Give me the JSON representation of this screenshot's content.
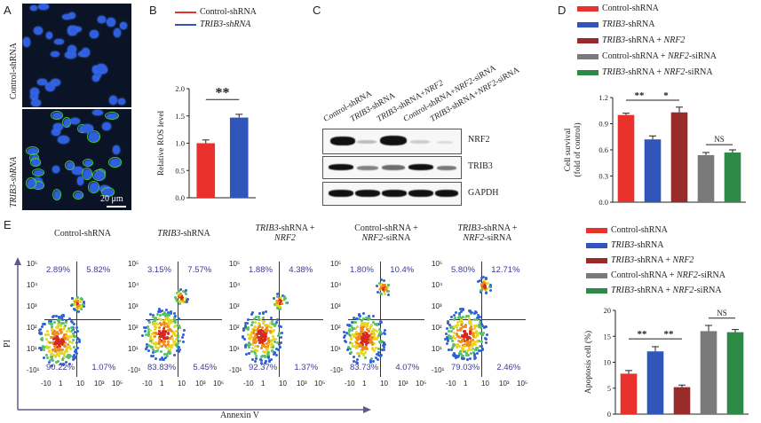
{
  "panels": {
    "a": "A",
    "b": "B",
    "c": "C",
    "d": "D",
    "e": "E"
  },
  "panel_a": {
    "rows": [
      "Control-shRNA",
      "TRIB3-shRNA"
    ],
    "scale_bar": "20 μm"
  },
  "panel_c": {
    "lanes": [
      "Control-shRNA",
      "TRIB3-shRNA",
      "TRIB3-shRNA+NRF2",
      "Control-shRNA+NRF2-siRNA",
      "TRIB3-shRNA+NRF2-siRNA"
    ],
    "blots": [
      "NRF2",
      "TRIB3",
      "GAPDH"
    ]
  },
  "panel_e_axes": {
    "x": "Annexin V",
    "y": "PI"
  },
  "flow_plots": [
    {
      "title": "Control-shRNA",
      "ul": "2.89%",
      "ur": "5.82%",
      "ll": "90.22%",
      "lr": "1.07%"
    },
    {
      "title": "TRIB3-shRNA",
      "ul": "3.15%",
      "ur": "7.57%",
      "ll": "83.83%",
      "lr": "5.45%"
    },
    {
      "title": "TRIB3-shRNA + NRF2",
      "ul": "1.88%",
      "ur": "4.38%",
      "ll": "92.37%",
      "lr": "1.37%"
    },
    {
      "title": "Control-shRNA + NRF2-siRNA",
      "ul": "1.80%",
      "ur": "10.4%",
      "ll": "83.73%",
      "lr": "4.07%"
    },
    {
      "title": "TRIB3-shRNA + NRF2-siRNA",
      "ul": "5.80%",
      "ur": "12.71%",
      "ll": "79.03%",
      "lr": "2.46%"
    }
  ],
  "flow_ticks": {
    "y": [
      "10⁵",
      "10⁴",
      "10³",
      "10²",
      "10¹",
      "-10¹"
    ],
    "x": [
      "-10",
      "1",
      "10",
      "10³",
      "10⁵"
    ]
  },
  "colors": {
    "red": "#e8322b",
    "blue": "#2f56b8",
    "darkred": "#9a2b2b",
    "gray": "#7a7a7a",
    "green": "#2e8b47"
  },
  "chart_data": [
    {
      "type": "bar",
      "panel": "B",
      "title": "",
      "ylabel": "Relative ROS level",
      "ylim": [
        0,
        2.0
      ],
      "yticks": [
        "0.0",
        "0.5",
        "1.0",
        "1.5",
        "2.0"
      ],
      "legend": [
        "Control-shRNA",
        "TRIB3-shRNA"
      ],
      "categories": [
        "Control-shRNA",
        "TRIB3-shRNA"
      ],
      "values": [
        1.0,
        1.47
      ],
      "errors": [
        0.06,
        0.06
      ],
      "significance": "**"
    },
    {
      "type": "bar",
      "panel": "D",
      "ylabel": "Cell survival\n(fold of control)",
      "ylim": [
        0,
        1.2
      ],
      "yticks": [
        "0.0",
        "0.3",
        "0.6",
        "0.9",
        "1.2"
      ],
      "legend": [
        "Control-shRNA",
        "TRIB3-shRNA",
        "TRIB3-shRNA + NRF2",
        "Control-shRNA + NRF2-siRNA",
        "TRIB3-shRNA + NRF2-siRNA"
      ],
      "categories": [
        "Control-shRNA",
        "TRIB3-shRNA",
        "TRIB3-shRNA + NRF2",
        "Control-shRNA + NRF2-siRNA",
        "TRIB3-shRNA + NRF2-siRNA"
      ],
      "values": [
        1.0,
        0.72,
        1.03,
        0.54,
        0.57
      ],
      "errors": [
        0.02,
        0.04,
        0.06,
        0.03,
        0.03
      ],
      "significance": [
        "**",
        "*",
        "NS"
      ]
    },
    {
      "type": "bar",
      "panel": "E",
      "ylabel": "Apoptosis cell (%)",
      "ylim": [
        0,
        20
      ],
      "yticks": [
        "0",
        "5",
        "10",
        "15",
        "20"
      ],
      "legend": [
        "Control-shRNA",
        "TRIB3-shRNA",
        "TRIB3-shRNA + NRF2",
        "Control-shRNA + NRF2-siRNA",
        "TRIB3-shRNA + NRF2-siRNA"
      ],
      "categories": [
        "Control-shRNA",
        "TRIB3-shRNA",
        "TRIB3-shRNA + NRF2",
        "Control-shRNA + NRF2-siRNA",
        "TRIB3-shRNA + NRF2-siRNA"
      ],
      "values": [
        7.8,
        12.1,
        5.2,
        16.0,
        15.8
      ],
      "errors": [
        0.6,
        0.9,
        0.4,
        1.1,
        0.5
      ],
      "significance": [
        "**",
        "**",
        "NS"
      ]
    }
  ]
}
